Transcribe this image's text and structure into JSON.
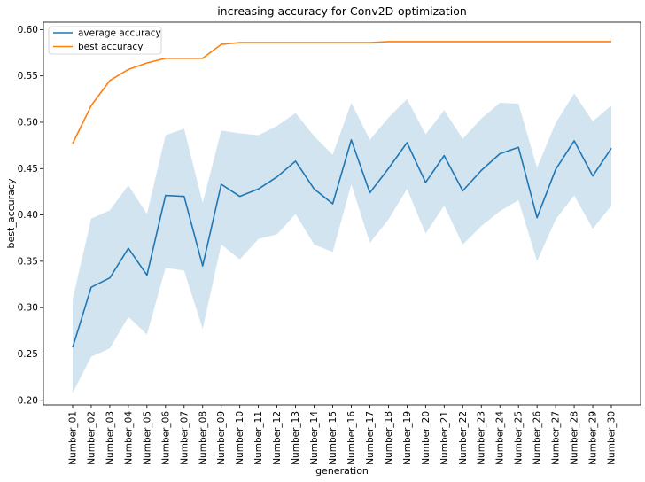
{
  "chart_data": {
    "type": "line",
    "title": "increasing accuracy for Conv2D-optimization",
    "xlabel": "generation",
    "ylabel": "best_accuracy",
    "ylim": [
      0.195,
      0.608
    ],
    "yticks": [
      0.2,
      0.25,
      0.3,
      0.35,
      0.4,
      0.45,
      0.5,
      0.55,
      0.6
    ],
    "ytick_labels": [
      "0.20",
      "0.25",
      "0.30",
      "0.35",
      "0.40",
      "0.45",
      "0.50",
      "0.55",
      "0.60"
    ],
    "grid": false,
    "legend_position": "top-left",
    "categories": [
      "Number_01",
      "Number_02",
      "Number_03",
      "Number_04",
      "Number_05",
      "Number_06",
      "Number_07",
      "Number_08",
      "Number_09",
      "Number_10",
      "Number_11",
      "Number_12",
      "Number_13",
      "Number_14",
      "Number_15",
      "Number_16",
      "Number_17",
      "Number_18",
      "Number_19",
      "Number_20",
      "Number_21",
      "Number_22",
      "Number_23",
      "Number_24",
      "Number_25",
      "Number_26",
      "Number_27",
      "Number_28",
      "Number_29",
      "Number_30"
    ],
    "series": [
      {
        "name": "average accuracy",
        "color": "#1f77b4",
        "values": [
          0.257,
          0.322,
          0.332,
          0.364,
          0.335,
          0.421,
          0.42,
          0.345,
          0.433,
          0.42,
          0.428,
          0.441,
          0.458,
          0.428,
          0.412,
          0.481,
          0.424,
          0.45,
          0.478,
          0.435,
          0.464,
          0.426,
          0.448,
          0.466,
          0.473,
          0.397,
          0.449,
          0.48,
          0.442,
          0.472
        ],
        "band_lower": [
          0.208,
          0.247,
          0.256,
          0.29,
          0.271,
          0.343,
          0.34,
          0.277,
          0.368,
          0.352,
          0.374,
          0.379,
          0.401,
          0.368,
          0.36,
          0.433,
          0.37,
          0.395,
          0.428,
          0.38,
          0.41,
          0.368,
          0.388,
          0.404,
          0.416,
          0.35,
          0.395,
          0.421,
          0.385,
          0.41
        ],
        "band_upper": [
          0.309,
          0.396,
          0.405,
          0.432,
          0.401,
          0.486,
          0.493,
          0.413,
          0.491,
          0.488,
          0.486,
          0.496,
          0.51,
          0.485,
          0.465,
          0.521,
          0.481,
          0.505,
          0.525,
          0.487,
          0.513,
          0.482,
          0.504,
          0.521,
          0.52,
          0.451,
          0.499,
          0.531,
          0.501,
          0.518
        ],
        "band_color": "#1f77b4"
      },
      {
        "name": "best accuracy",
        "color": "#ff7f0e",
        "values": [
          0.477,
          0.518,
          0.545,
          0.557,
          0.564,
          0.569,
          0.569,
          0.569,
          0.584,
          0.586,
          0.586,
          0.586,
          0.586,
          0.586,
          0.586,
          0.586,
          0.586,
          0.587,
          0.587,
          0.587,
          0.587,
          0.587,
          0.587,
          0.587,
          0.587,
          0.587,
          0.587,
          0.587,
          0.587,
          0.587
        ]
      }
    ]
  }
}
